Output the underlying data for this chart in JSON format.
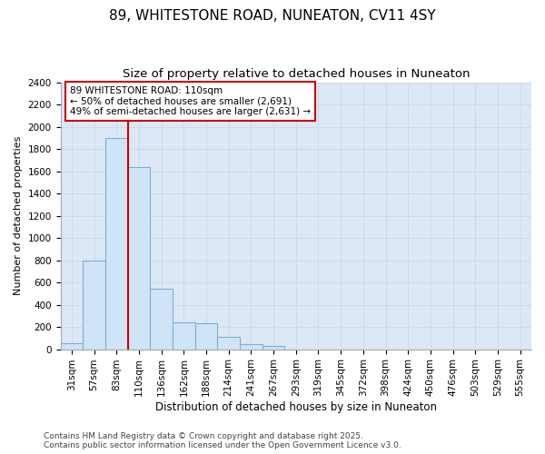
{
  "title": "89, WHITESTONE ROAD, NUNEATON, CV11 4SY",
  "subtitle": "Size of property relative to detached houses in Nuneaton",
  "xlabel": "Distribution of detached houses by size in Nuneaton",
  "ylabel": "Number of detached properties",
  "footer_line1": "Contains HM Land Registry data © Crown copyright and database right 2025.",
  "footer_line2": "Contains public sector information licensed under the Open Government Licence v3.0.",
  "bar_labels": [
    "31sqm",
    "57sqm",
    "83sqm",
    "110sqm",
    "136sqm",
    "162sqm",
    "188sqm",
    "214sqm",
    "241sqm",
    "267sqm",
    "293sqm",
    "319sqm",
    "345sqm",
    "372sqm",
    "398sqm",
    "424sqm",
    "450sqm",
    "476sqm",
    "503sqm",
    "529sqm",
    "555sqm"
  ],
  "bar_values": [
    55,
    800,
    1900,
    1640,
    545,
    240,
    235,
    110,
    45,
    30,
    0,
    0,
    0,
    0,
    0,
    0,
    0,
    0,
    0,
    0,
    0
  ],
  "bar_color": "#d0e4f7",
  "bar_edge_color": "#7bafd4",
  "red_line_index": 3,
  "ylim": [
    0,
    2400
  ],
  "yticks": [
    0,
    200,
    400,
    600,
    800,
    1000,
    1200,
    1400,
    1600,
    1800,
    2000,
    2200,
    2400
  ],
  "annotation_title": "89 WHITESTONE ROAD: 110sqm",
  "annotation_line2": "← 50% of detached houses are smaller (2,691)",
  "annotation_line3": "49% of semi-detached houses are larger (2,631) →",
  "annotation_box_color": "#ffffff",
  "annotation_box_edge": "#cc0000",
  "red_line_color": "#cc0000",
  "grid_color": "#c8d8ea",
  "plot_bg_color": "#dce8f5",
  "fig_bg_color": "#ffffff",
  "title_fontsize": 11,
  "subtitle_fontsize": 9.5,
  "ylabel_fontsize": 8,
  "xlabel_fontsize": 8.5,
  "tick_fontsize": 7.5,
  "annotation_fontsize": 7.5,
  "footer_fontsize": 6.5
}
